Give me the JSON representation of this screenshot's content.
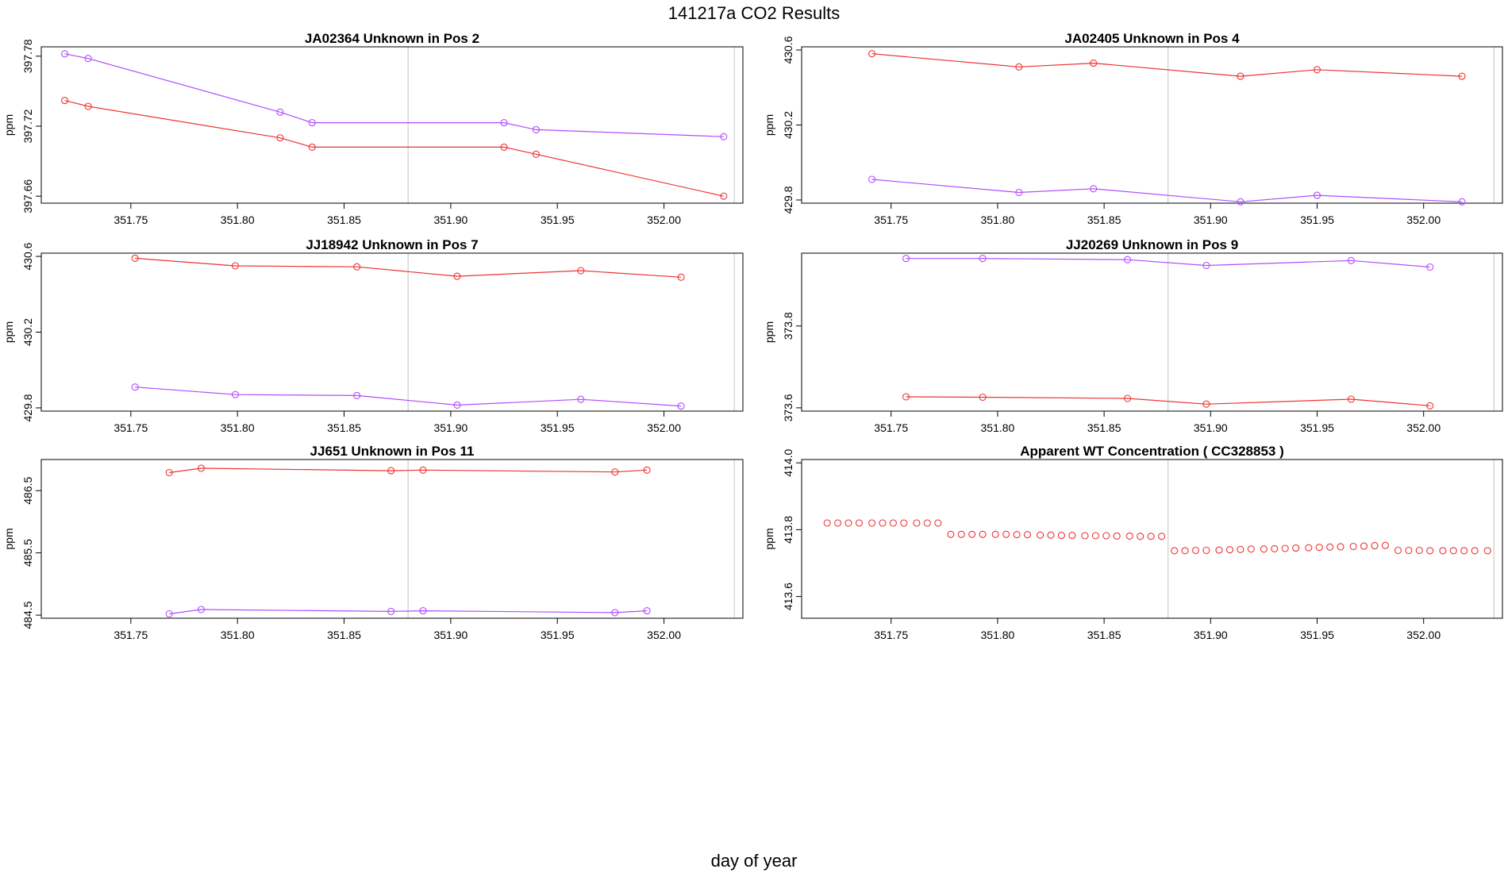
{
  "title": "141217a  CO2 Results",
  "x_axis_caption": "day of year",
  "colors": {
    "series_a": "#ee3333",
    "series_b": "#b04cff",
    "vline": "#cccccc",
    "frame": "#000000"
  },
  "chart_data": [
    {
      "type": "line",
      "title": "JA02364    Unknown in Pos 2",
      "xlabel": "",
      "ylabel": "ppm",
      "xlim": [
        351.708,
        352.037
      ],
      "ylim": [
        397.654,
        397.788
      ],
      "xticks": [
        "351.75",
        "351.80",
        "351.85",
        "351.90",
        "351.95",
        "352.00"
      ],
      "yticks": [
        "397.66",
        "397.72",
        "397.78"
      ],
      "vlines": [
        351.88,
        352.033
      ],
      "series": [
        {
          "name": "purple",
          "color": "#b04cff",
          "x": [
            351.719,
            351.73,
            351.82,
            351.835,
            351.925,
            351.94,
            352.028
          ],
          "y": [
            397.782,
            397.778,
            397.732,
            397.723,
            397.723,
            397.717,
            397.711
          ]
        },
        {
          "name": "red",
          "color": "#ee3333",
          "x": [
            351.719,
            351.73,
            351.82,
            351.835,
            351.925,
            351.94,
            352.028
          ],
          "y": [
            397.742,
            397.737,
            397.71,
            397.702,
            397.702,
            397.696,
            397.66
          ]
        }
      ]
    },
    {
      "type": "line",
      "title": "JA02405    Unknown in Pos 4",
      "xlabel": "",
      "ylabel": "ppm",
      "xlim": [
        351.708,
        352.037
      ],
      "ylim": [
        429.783,
        430.617
      ],
      "xticks": [
        "351.75",
        "351.80",
        "351.85",
        "351.90",
        "351.95",
        "352.00"
      ],
      "yticks": [
        "429.8",
        "430.2",
        "430.6"
      ],
      "vlines": [
        351.88,
        352.033
      ],
      "series": [
        {
          "name": "red",
          "color": "#ee3333",
          "x": [
            351.741,
            351.81,
            351.845,
            351.914,
            351.95,
            352.018
          ],
          "y": [
            430.58,
            430.51,
            430.53,
            430.46,
            430.495,
            430.46
          ]
        },
        {
          "name": "purple",
          "color": "#b04cff",
          "x": [
            351.741,
            351.81,
            351.845,
            351.914,
            351.95,
            352.018
          ],
          "y": [
            429.91,
            429.84,
            429.86,
            429.79,
            429.825,
            429.79
          ]
        }
      ]
    },
    {
      "type": "line",
      "title": "JJ18942    Unknown in Pos 7",
      "xlabel": "",
      "ylabel": "ppm",
      "xlim": [
        351.708,
        352.037
      ],
      "ylim": [
        429.783,
        430.617
      ],
      "xticks": [
        "351.75",
        "351.80",
        "351.85",
        "351.90",
        "351.95",
        "352.00"
      ],
      "yticks": [
        "429.8",
        "430.2",
        "430.6"
      ],
      "vlines": [
        351.88,
        352.033
      ],
      "series": [
        {
          "name": "red",
          "color": "#ee3333",
          "x": [
            351.752,
            351.799,
            351.856,
            351.903,
            351.961,
            352.008
          ],
          "y": [
            430.59,
            430.55,
            430.545,
            430.495,
            430.525,
            430.49
          ]
        },
        {
          "name": "purple",
          "color": "#b04cff",
          "x": [
            351.752,
            351.799,
            351.856,
            351.903,
            351.961,
            352.008
          ],
          "y": [
            429.91,
            429.87,
            429.865,
            429.815,
            429.845,
            429.81
          ]
        }
      ]
    },
    {
      "type": "line",
      "title": "JJ20269    Unknown in Pos 9",
      "xlabel": "",
      "ylabel": "ppm",
      "xlim": [
        351.708,
        352.037
      ],
      "ylim": [
        373.592,
        373.978
      ],
      "xticks": [
        "351.75",
        "351.80",
        "351.85",
        "351.90",
        "351.95",
        "352.00"
      ],
      "yticks": [
        "373.6",
        "373.8"
      ],
      "vlines": [
        351.88,
        352.033
      ],
      "series": [
        {
          "name": "purple",
          "color": "#b04cff",
          "x": [
            351.757,
            351.793,
            351.861,
            351.898,
            351.966,
            352.003
          ],
          "y": [
            373.965,
            373.965,
            373.962,
            373.948,
            373.96,
            373.944
          ]
        },
        {
          "name": "red",
          "color": "#ee3333",
          "x": [
            351.757,
            351.793,
            351.861,
            351.898,
            351.966,
            352.003
          ],
          "y": [
            373.627,
            373.626,
            373.623,
            373.609,
            373.621,
            373.605
          ]
        }
      ]
    },
    {
      "type": "line",
      "title": "JJ651    Unknown in Pos 11",
      "xlabel": "",
      "ylabel": "ppm",
      "xlim": [
        351.708,
        352.037
      ],
      "ylim": [
        484.45,
        487.0
      ],
      "xticks": [
        "351.75",
        "351.80",
        "351.85",
        "351.90",
        "351.95",
        "352.00"
      ],
      "yticks": [
        "484.5",
        "485.5",
        "486.5"
      ],
      "vlines": [
        351.88,
        352.033
      ],
      "series": [
        {
          "name": "red",
          "color": "#ee3333",
          "x": [
            351.768,
            351.783,
            351.872,
            351.887,
            351.977,
            351.992
          ],
          "y": [
            486.79,
            486.86,
            486.82,
            486.83,
            486.8,
            486.83
          ]
        },
        {
          "name": "purple",
          "color": "#b04cff",
          "x": [
            351.768,
            351.783,
            351.872,
            351.887,
            351.977,
            351.992
          ],
          "y": [
            484.52,
            484.59,
            484.56,
            484.57,
            484.54,
            484.57
          ]
        }
      ]
    },
    {
      "type": "scatter",
      "title": "Apparent WT Concentration ( CC328853 )",
      "xlabel": "",
      "ylabel": "ppm",
      "xlim": [
        351.708,
        352.037
      ],
      "ylim": [
        413.535,
        414.01
      ],
      "xticks": [
        "351.75",
        "351.80",
        "351.85",
        "351.90",
        "351.95",
        "352.00"
      ],
      "yticks": [
        "413.6",
        "413.8",
        "414.0"
      ],
      "vlines": [
        351.88,
        352.033
      ],
      "series": [
        {
          "name": "WT",
          "color": "#ee3333",
          "lines": false,
          "x": [
            351.72,
            351.725,
            351.73,
            351.735,
            351.741,
            351.746,
            351.751,
            351.756,
            351.762,
            351.767,
            351.772,
            351.778,
            351.783,
            351.788,
            351.793,
            351.799,
            351.804,
            351.809,
            351.814,
            351.82,
            351.825,
            351.83,
            351.835,
            351.841,
            351.846,
            351.851,
            351.856,
            351.862,
            351.867,
            351.872,
            351.877,
            351.883,
            351.888,
            351.893,
            351.898,
            351.904,
            351.909,
            351.914,
            351.919,
            351.925,
            351.93,
            351.935,
            351.94,
            351.946,
            351.951,
            351.956,
            351.961,
            351.967,
            351.972,
            351.977,
            351.982,
            351.988,
            351.993,
            351.998,
            352.003,
            352.009,
            352.014,
            352.019,
            352.024,
            352.03
          ],
          "y": [
            413.82,
            413.82,
            413.82,
            413.82,
            413.82,
            413.82,
            413.82,
            413.82,
            413.82,
            413.82,
            413.82,
            413.786,
            413.786,
            413.786,
            413.786,
            413.786,
            413.786,
            413.785,
            413.785,
            413.784,
            413.784,
            413.783,
            413.783,
            413.782,
            413.782,
            413.782,
            413.781,
            413.781,
            413.78,
            413.78,
            413.78,
            413.737,
            413.737,
            413.738,
            413.738,
            413.739,
            413.74,
            413.741,
            413.742,
            413.742,
            413.743,
            413.744,
            413.745,
            413.746,
            413.747,
            413.748,
            413.749,
            413.75,
            413.751,
            413.752,
            413.753,
            413.738,
            413.738,
            413.738,
            413.737,
            413.737,
            413.737,
            413.737,
            413.737,
            413.737
          ]
        }
      ]
    }
  ]
}
